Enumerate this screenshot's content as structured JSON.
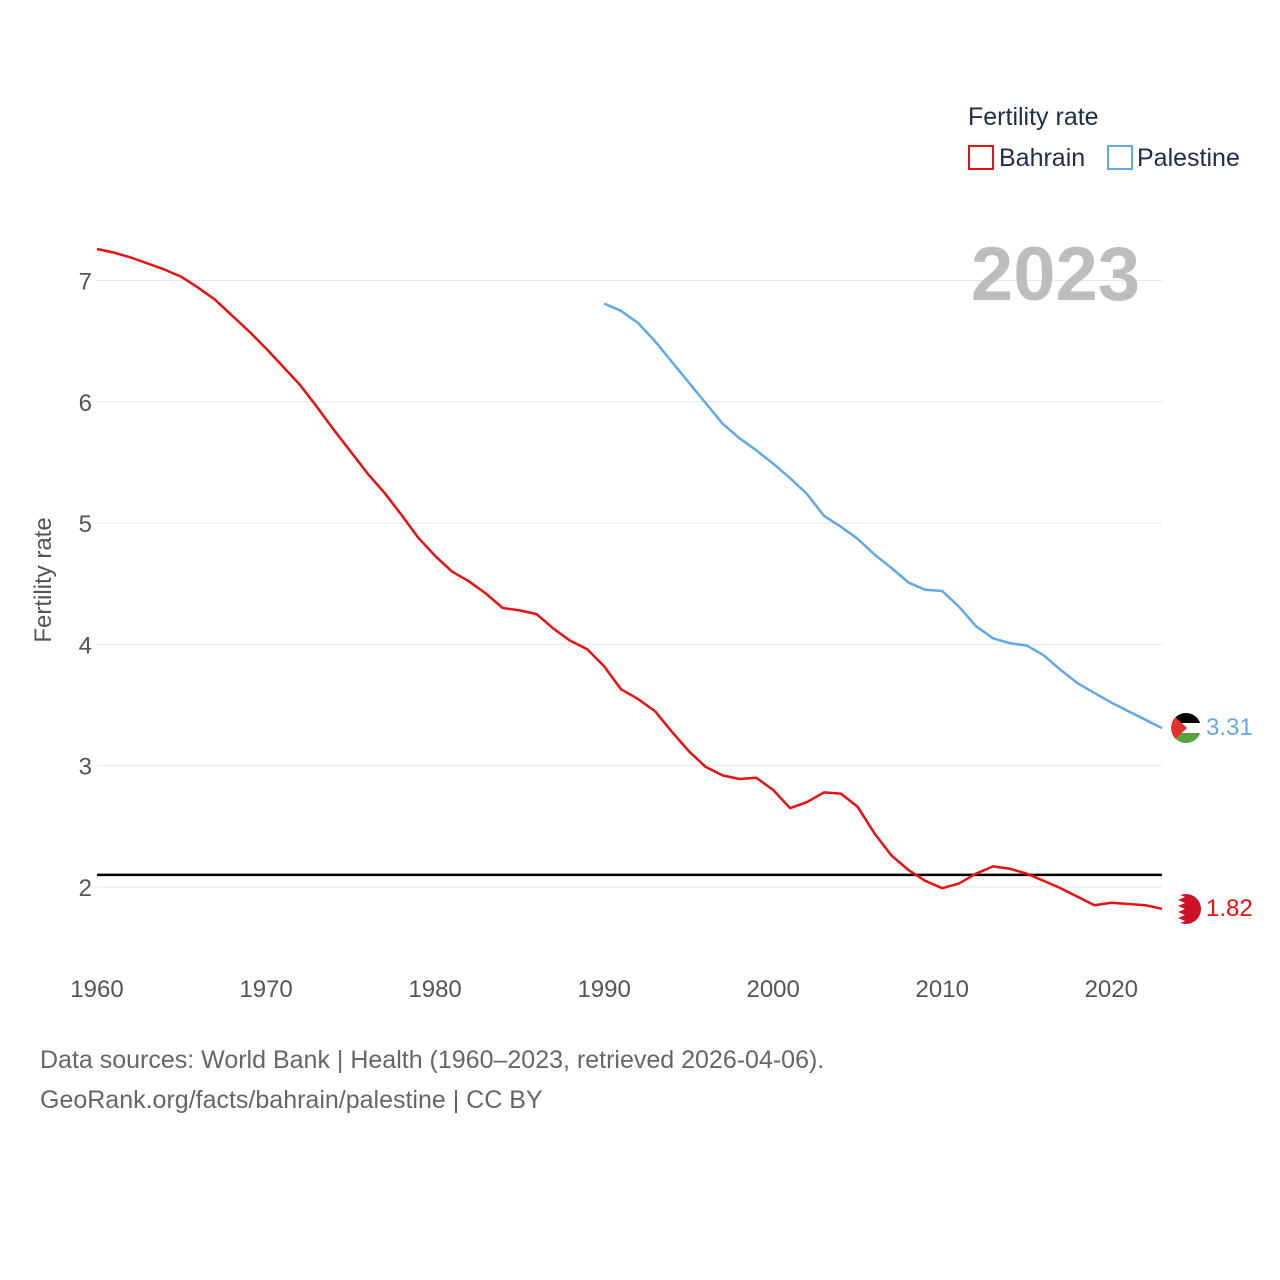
{
  "chart_data": {
    "type": "line",
    "ylabel": "Fertility rate",
    "xlabel": "",
    "xlim": [
      1960,
      2023
    ],
    "ylim": [
      1.5,
      7.5
    ],
    "x_ticks": [
      1960,
      1970,
      1980,
      1990,
      2000,
      2010,
      2020
    ],
    "y_ticks": [
      2,
      3,
      4,
      5,
      6,
      7
    ],
    "legend_title": "Fertility rate",
    "legend_position": "top-right",
    "current_year": "2023",
    "reference_line": 2.1,
    "series": [
      {
        "name": "Bahrain",
        "color": "#e81010",
        "end_label": "1.82",
        "flag": "bahrain-flag",
        "x": [
          1960,
          1961,
          1962,
          1963,
          1964,
          1965,
          1966,
          1967,
          1968,
          1969,
          1970,
          1971,
          1972,
          1973,
          1974,
          1975,
          1976,
          1977,
          1978,
          1979,
          1980,
          1981,
          1982,
          1983,
          1984,
          1985,
          1986,
          1987,
          1988,
          1989,
          1990,
          1991,
          1992,
          1993,
          1994,
          1995,
          1996,
          1997,
          1998,
          1999,
          2000,
          2001,
          2002,
          2003,
          2004,
          2005,
          2006,
          2007,
          2008,
          2009,
          2010,
          2011,
          2012,
          2013,
          2014,
          2015,
          2016,
          2017,
          2018,
          2019,
          2020,
          2021,
          2022,
          2023
        ],
        "values": [
          7.26,
          7.23,
          7.19,
          7.14,
          7.09,
          7.03,
          6.94,
          6.84,
          6.71,
          6.58,
          6.44,
          6.29,
          6.14,
          5.96,
          5.77,
          5.59,
          5.41,
          5.25,
          5.07,
          4.88,
          4.73,
          4.6,
          4.52,
          4.42,
          4.3,
          4.28,
          4.25,
          4.13,
          4.03,
          3.96,
          3.82,
          3.63,
          3.55,
          3.45,
          3.28,
          3.12,
          2.99,
          2.92,
          2.89,
          2.9,
          2.8,
          2.65,
          2.7,
          2.78,
          2.77,
          2.66,
          2.44,
          2.26,
          2.14,
          2.05,
          1.99,
          2.03,
          2.11,
          2.17,
          2.15,
          2.11,
          2.05,
          1.99,
          1.92,
          1.85,
          1.87,
          1.86,
          1.85,
          1.82
        ]
      },
      {
        "name": "Palestine",
        "color": "#62a8e5",
        "end_label": "3.31",
        "flag": "palestine-flag",
        "x": [
          1990,
          1991,
          1992,
          1993,
          1994,
          1995,
          1996,
          1997,
          1998,
          1999,
          2000,
          2001,
          2002,
          2003,
          2004,
          2005,
          2006,
          2007,
          2008,
          2009,
          2010,
          2011,
          2012,
          2013,
          2014,
          2015,
          2016,
          2017,
          2018,
          2019,
          2020,
          2021,
          2022,
          2023
        ],
        "values": [
          6.81,
          6.75,
          6.65,
          6.5,
          6.33,
          6.16,
          5.99,
          5.82,
          5.7,
          5.6,
          5.49,
          5.37,
          5.24,
          5.06,
          4.97,
          4.87,
          4.74,
          4.63,
          4.51,
          4.45,
          4.44,
          4.31,
          4.15,
          4.05,
          4.01,
          3.99,
          3.91,
          3.79,
          3.68,
          3.6,
          3.52,
          3.45,
          3.38,
          3.31
        ]
      }
    ]
  },
  "footer": {
    "sources": "Data sources: World Bank | Health (1960–2023, retrieved 2026-04-06).",
    "credit": "GeoRank.org/facts/bahrain/palestine | CC BY"
  }
}
